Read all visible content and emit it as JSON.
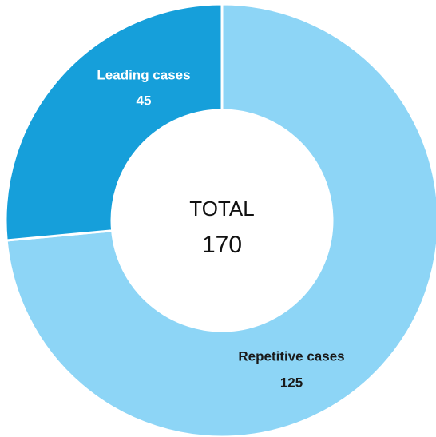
{
  "chart_data": {
    "type": "donut",
    "categories": [
      "Repetitive cases",
      "Leading cases"
    ],
    "values": [
      125,
      45
    ],
    "colors": [
      "#8dd5f6",
      "#169fda"
    ],
    "center_label": "TOTAL",
    "center_value": 170
  }
}
